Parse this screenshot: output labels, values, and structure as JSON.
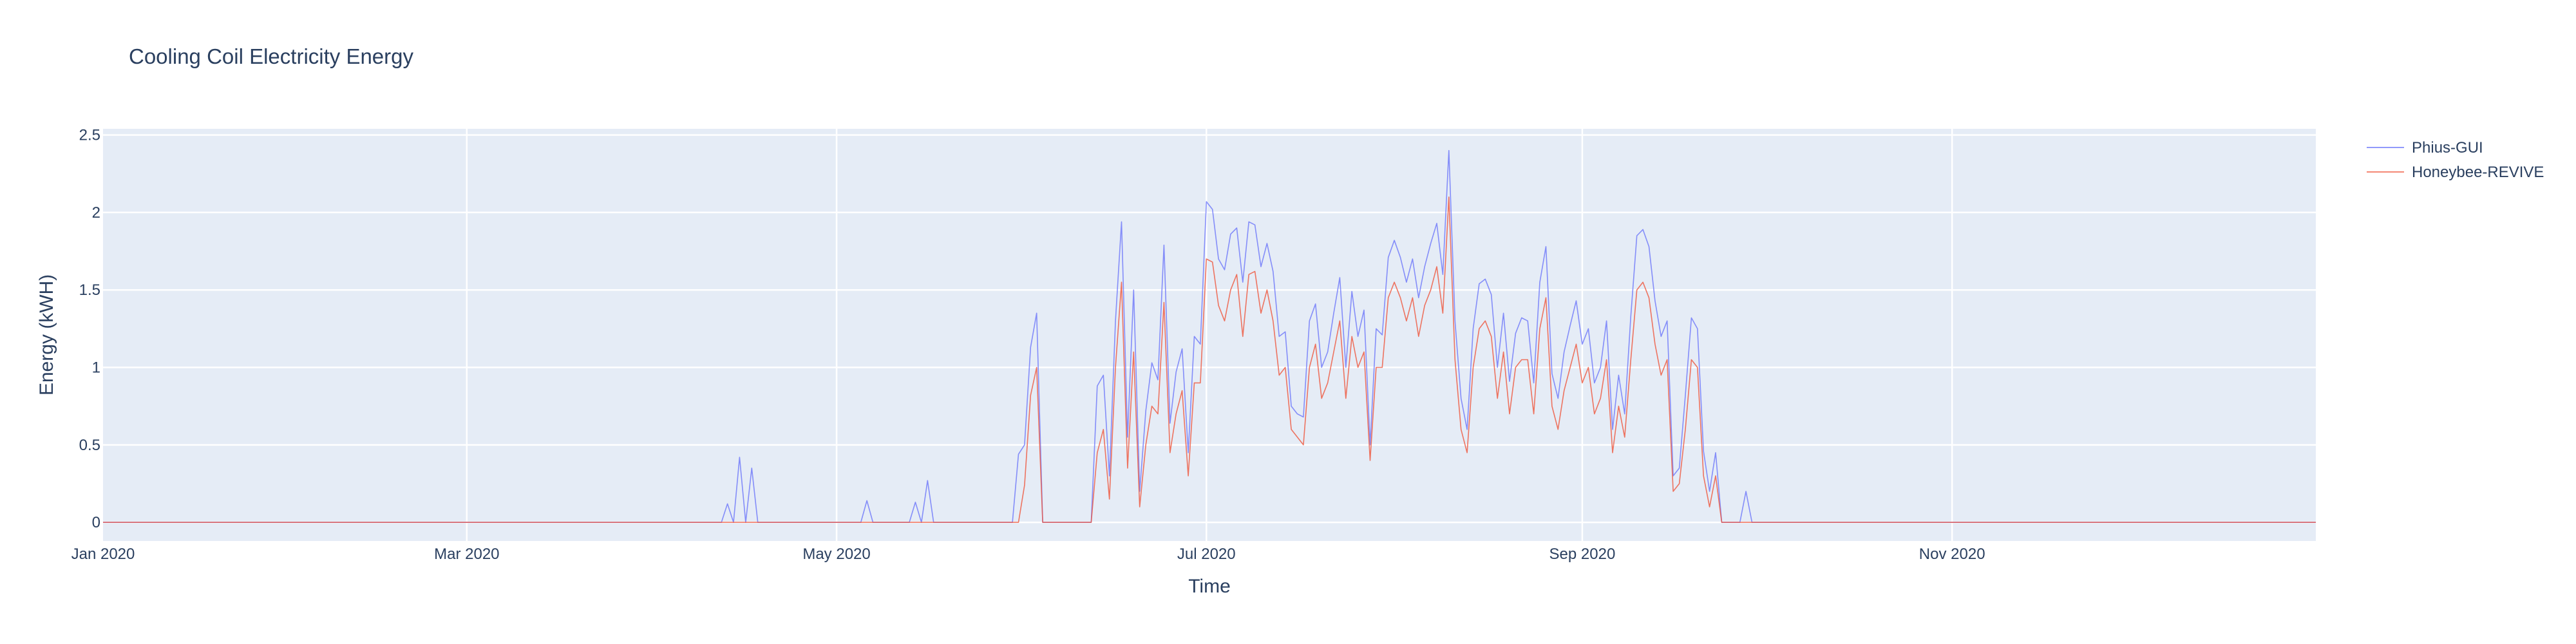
{
  "chart_data": {
    "type": "line",
    "title": "Cooling Coil Electricity Energy",
    "xlabel": "Time",
    "ylabel": "Energy (kWH)",
    "x_range": [
      "2020-01-01",
      "2020-12-31"
    ],
    "x_ticks": [
      "Jan 2020",
      "Mar 2020",
      "May 2020",
      "Jul 2020",
      "Sep 2020",
      "Nov 2020"
    ],
    "ylim": [
      -0.12,
      2.54
    ],
    "y_ticks": [
      0,
      0.5,
      1,
      1.5,
      2,
      2.5
    ],
    "y_tick_labels": [
      "0",
      "0.5",
      "1",
      "1.5",
      "2",
      "2.5"
    ],
    "grid": true,
    "legend_position": "top-right",
    "plot_background": "#e5ecf6",
    "series": [
      {
        "name": "Phius-GUI",
        "color": "#636efa",
        "points": [
          [
            "2020-01-01",
            0
          ],
          [
            "2020-04-12",
            0
          ],
          [
            "2020-04-13",
            0.12
          ],
          [
            "2020-04-14",
            0
          ],
          [
            "2020-04-15",
            0.42
          ],
          [
            "2020-04-16",
            0
          ],
          [
            "2020-04-17",
            0.35
          ],
          [
            "2020-04-18",
            0
          ],
          [
            "2020-05-05",
            0
          ],
          [
            "2020-05-06",
            0.14
          ],
          [
            "2020-05-07",
            0
          ],
          [
            "2020-05-13",
            0
          ],
          [
            "2020-05-14",
            0.13
          ],
          [
            "2020-05-15",
            0
          ],
          [
            "2020-05-16",
            0.27
          ],
          [
            "2020-05-17",
            0
          ],
          [
            "2020-05-30",
            0
          ],
          [
            "2020-05-31",
            0.44
          ],
          [
            "2020-06-01",
            0.5
          ],
          [
            "2020-06-02",
            1.13
          ],
          [
            "2020-06-03",
            1.35
          ],
          [
            "2020-06-04",
            0
          ],
          [
            "2020-06-12",
            0
          ],
          [
            "2020-06-13",
            0.88
          ],
          [
            "2020-06-14",
            0.95
          ],
          [
            "2020-06-15",
            0.3
          ],
          [
            "2020-06-16",
            1.3
          ],
          [
            "2020-06-17",
            1.94
          ],
          [
            "2020-06-18",
            0.55
          ],
          [
            "2020-06-19",
            1.5
          ],
          [
            "2020-06-20",
            0.2
          ],
          [
            "2020-06-21",
            0.72
          ],
          [
            "2020-06-22",
            1.03
          ],
          [
            "2020-06-23",
            0.92
          ],
          [
            "2020-06-24",
            1.79
          ],
          [
            "2020-06-25",
            0.64
          ],
          [
            "2020-06-26",
            0.97
          ],
          [
            "2020-06-27",
            1.12
          ],
          [
            "2020-06-28",
            0.45
          ],
          [
            "2020-06-29",
            1.2
          ],
          [
            "2020-06-30",
            1.15
          ],
          [
            "2020-07-01",
            2.07
          ],
          [
            "2020-07-02",
            2.02
          ],
          [
            "2020-07-03",
            1.7
          ],
          [
            "2020-07-04",
            1.63
          ],
          [
            "2020-07-05",
            1.86
          ],
          [
            "2020-07-06",
            1.9
          ],
          [
            "2020-07-07",
            1.55
          ],
          [
            "2020-07-08",
            1.94
          ],
          [
            "2020-07-09",
            1.92
          ],
          [
            "2020-07-10",
            1.65
          ],
          [
            "2020-07-11",
            1.8
          ],
          [
            "2020-07-12",
            1.62
          ],
          [
            "2020-07-13",
            1.2
          ],
          [
            "2020-07-14",
            1.23
          ],
          [
            "2020-07-15",
            0.75
          ],
          [
            "2020-07-16",
            0.7
          ],
          [
            "2020-07-17",
            0.68
          ],
          [
            "2020-07-18",
            1.3
          ],
          [
            "2020-07-19",
            1.41
          ],
          [
            "2020-07-20",
            1.0
          ],
          [
            "2020-07-21",
            1.1
          ],
          [
            "2020-07-22",
            1.35
          ],
          [
            "2020-07-23",
            1.58
          ],
          [
            "2020-07-24",
            1.0
          ],
          [
            "2020-07-25",
            1.49
          ],
          [
            "2020-07-26",
            1.2
          ],
          [
            "2020-07-27",
            1.37
          ],
          [
            "2020-07-28",
            0.5
          ],
          [
            "2020-07-29",
            1.25
          ],
          [
            "2020-07-30",
            1.21
          ],
          [
            "2020-07-31",
            1.71
          ],
          [
            "2020-08-01",
            1.82
          ],
          [
            "2020-08-02",
            1.71
          ],
          [
            "2020-08-03",
            1.55
          ],
          [
            "2020-08-04",
            1.7
          ],
          [
            "2020-08-05",
            1.45
          ],
          [
            "2020-08-06",
            1.65
          ],
          [
            "2020-08-07",
            1.8
          ],
          [
            "2020-08-08",
            1.93
          ],
          [
            "2020-08-09",
            1.6
          ],
          [
            "2020-08-10",
            2.4
          ],
          [
            "2020-08-11",
            1.3
          ],
          [
            "2020-08-12",
            0.8
          ],
          [
            "2020-08-13",
            0.6
          ],
          [
            "2020-08-14",
            1.25
          ],
          [
            "2020-08-15",
            1.54
          ],
          [
            "2020-08-16",
            1.57
          ],
          [
            "2020-08-17",
            1.47
          ],
          [
            "2020-08-18",
            1.0
          ],
          [
            "2020-08-19",
            1.35
          ],
          [
            "2020-08-20",
            0.91
          ],
          [
            "2020-08-21",
            1.22
          ],
          [
            "2020-08-22",
            1.32
          ],
          [
            "2020-08-23",
            1.3
          ],
          [
            "2020-08-24",
            0.9
          ],
          [
            "2020-08-25",
            1.55
          ],
          [
            "2020-08-26",
            1.78
          ],
          [
            "2020-08-27",
            0.96
          ],
          [
            "2020-08-28",
            0.8
          ],
          [
            "2020-08-29",
            1.1
          ],
          [
            "2020-08-30",
            1.27
          ],
          [
            "2020-08-31",
            1.43
          ],
          [
            "2020-09-01",
            1.15
          ],
          [
            "2020-09-02",
            1.25
          ],
          [
            "2020-09-03",
            0.9
          ],
          [
            "2020-09-04",
            1.0
          ],
          [
            "2020-09-05",
            1.3
          ],
          [
            "2020-09-06",
            0.6
          ],
          [
            "2020-09-07",
            0.95
          ],
          [
            "2020-09-08",
            0.7
          ],
          [
            "2020-09-09",
            1.33
          ],
          [
            "2020-09-10",
            1.85
          ],
          [
            "2020-09-11",
            1.89
          ],
          [
            "2020-09-12",
            1.78
          ],
          [
            "2020-09-13",
            1.43
          ],
          [
            "2020-09-14",
            1.2
          ],
          [
            "2020-09-15",
            1.3
          ],
          [
            "2020-09-16",
            0.3
          ],
          [
            "2020-09-17",
            0.35
          ],
          [
            "2020-09-18",
            0.82
          ],
          [
            "2020-09-19",
            1.32
          ],
          [
            "2020-09-20",
            1.25
          ],
          [
            "2020-09-21",
            0.46
          ],
          [
            "2020-09-22",
            0.2
          ],
          [
            "2020-09-23",
            0.45
          ],
          [
            "2020-09-24",
            0
          ],
          [
            "2020-09-27",
            0
          ],
          [
            "2020-09-28",
            0.2
          ],
          [
            "2020-09-29",
            0
          ],
          [
            "2020-12-31",
            0
          ]
        ]
      },
      {
        "name": "Honeybee-REVIVE",
        "color": "#ef553b",
        "points": [
          [
            "2020-01-01",
            0
          ],
          [
            "2020-05-31",
            0
          ],
          [
            "2020-06-01",
            0.24
          ],
          [
            "2020-06-02",
            0.82
          ],
          [
            "2020-06-03",
            1.0
          ],
          [
            "2020-06-04",
            0
          ],
          [
            "2020-06-12",
            0
          ],
          [
            "2020-06-13",
            0.45
          ],
          [
            "2020-06-14",
            0.6
          ],
          [
            "2020-06-15",
            0.15
          ],
          [
            "2020-06-16",
            1.0
          ],
          [
            "2020-06-17",
            1.55
          ],
          [
            "2020-06-18",
            0.35
          ],
          [
            "2020-06-19",
            1.1
          ],
          [
            "2020-06-20",
            0.1
          ],
          [
            "2020-06-21",
            0.5
          ],
          [
            "2020-06-22",
            0.75
          ],
          [
            "2020-06-23",
            0.7
          ],
          [
            "2020-06-24",
            1.42
          ],
          [
            "2020-06-25",
            0.45
          ],
          [
            "2020-06-26",
            0.7
          ],
          [
            "2020-06-27",
            0.85
          ],
          [
            "2020-06-28",
            0.3
          ],
          [
            "2020-06-29",
            0.9
          ],
          [
            "2020-06-30",
            0.9
          ],
          [
            "2020-07-01",
            1.7
          ],
          [
            "2020-07-02",
            1.68
          ],
          [
            "2020-07-03",
            1.4
          ],
          [
            "2020-07-04",
            1.3
          ],
          [
            "2020-07-05",
            1.5
          ],
          [
            "2020-07-06",
            1.6
          ],
          [
            "2020-07-07",
            1.2
          ],
          [
            "2020-07-08",
            1.6
          ],
          [
            "2020-07-09",
            1.62
          ],
          [
            "2020-07-10",
            1.35
          ],
          [
            "2020-07-11",
            1.5
          ],
          [
            "2020-07-12",
            1.3
          ],
          [
            "2020-07-13",
            0.95
          ],
          [
            "2020-07-14",
            1.0
          ],
          [
            "2020-07-15",
            0.6
          ],
          [
            "2020-07-16",
            0.55
          ],
          [
            "2020-07-17",
            0.5
          ],
          [
            "2020-07-18",
            1.0
          ],
          [
            "2020-07-19",
            1.15
          ],
          [
            "2020-07-20",
            0.8
          ],
          [
            "2020-07-21",
            0.9
          ],
          [
            "2020-07-22",
            1.1
          ],
          [
            "2020-07-23",
            1.3
          ],
          [
            "2020-07-24",
            0.8
          ],
          [
            "2020-07-25",
            1.2
          ],
          [
            "2020-07-26",
            1.0
          ],
          [
            "2020-07-27",
            1.1
          ],
          [
            "2020-07-28",
            0.4
          ],
          [
            "2020-07-29",
            1.0
          ],
          [
            "2020-07-30",
            1.0
          ],
          [
            "2020-07-31",
            1.45
          ],
          [
            "2020-08-01",
            1.55
          ],
          [
            "2020-08-02",
            1.45
          ],
          [
            "2020-08-03",
            1.3
          ],
          [
            "2020-08-04",
            1.45
          ],
          [
            "2020-08-05",
            1.2
          ],
          [
            "2020-08-06",
            1.4
          ],
          [
            "2020-08-07",
            1.5
          ],
          [
            "2020-08-08",
            1.65
          ],
          [
            "2020-08-09",
            1.35
          ],
          [
            "2020-08-10",
            2.1
          ],
          [
            "2020-08-11",
            1.05
          ],
          [
            "2020-08-12",
            0.6
          ],
          [
            "2020-08-13",
            0.45
          ],
          [
            "2020-08-14",
            1.0
          ],
          [
            "2020-08-15",
            1.25
          ],
          [
            "2020-08-16",
            1.3
          ],
          [
            "2020-08-17",
            1.2
          ],
          [
            "2020-08-18",
            0.8
          ],
          [
            "2020-08-19",
            1.1
          ],
          [
            "2020-08-20",
            0.7
          ],
          [
            "2020-08-21",
            1.0
          ],
          [
            "2020-08-22",
            1.05
          ],
          [
            "2020-08-23",
            1.05
          ],
          [
            "2020-08-24",
            0.7
          ],
          [
            "2020-08-25",
            1.25
          ],
          [
            "2020-08-26",
            1.45
          ],
          [
            "2020-08-27",
            0.75
          ],
          [
            "2020-08-28",
            0.6
          ],
          [
            "2020-08-29",
            0.85
          ],
          [
            "2020-08-30",
            1.0
          ],
          [
            "2020-08-31",
            1.15
          ],
          [
            "2020-09-01",
            0.9
          ],
          [
            "2020-09-02",
            1.0
          ],
          [
            "2020-09-03",
            0.7
          ],
          [
            "2020-09-04",
            0.8
          ],
          [
            "2020-09-05",
            1.05
          ],
          [
            "2020-09-06",
            0.45
          ],
          [
            "2020-09-07",
            0.75
          ],
          [
            "2020-09-08",
            0.55
          ],
          [
            "2020-09-09",
            1.05
          ],
          [
            "2020-09-10",
            1.5
          ],
          [
            "2020-09-11",
            1.55
          ],
          [
            "2020-09-12",
            1.45
          ],
          [
            "2020-09-13",
            1.15
          ],
          [
            "2020-09-14",
            0.95
          ],
          [
            "2020-09-15",
            1.05
          ],
          [
            "2020-09-16",
            0.2
          ],
          [
            "2020-09-17",
            0.25
          ],
          [
            "2020-09-18",
            0.6
          ],
          [
            "2020-09-19",
            1.05
          ],
          [
            "2020-09-20",
            1.0
          ],
          [
            "2020-09-21",
            0.3
          ],
          [
            "2020-09-22",
            0.1
          ],
          [
            "2020-09-23",
            0.3
          ],
          [
            "2020-09-24",
            0
          ],
          [
            "2020-12-31",
            0
          ]
        ]
      }
    ]
  }
}
